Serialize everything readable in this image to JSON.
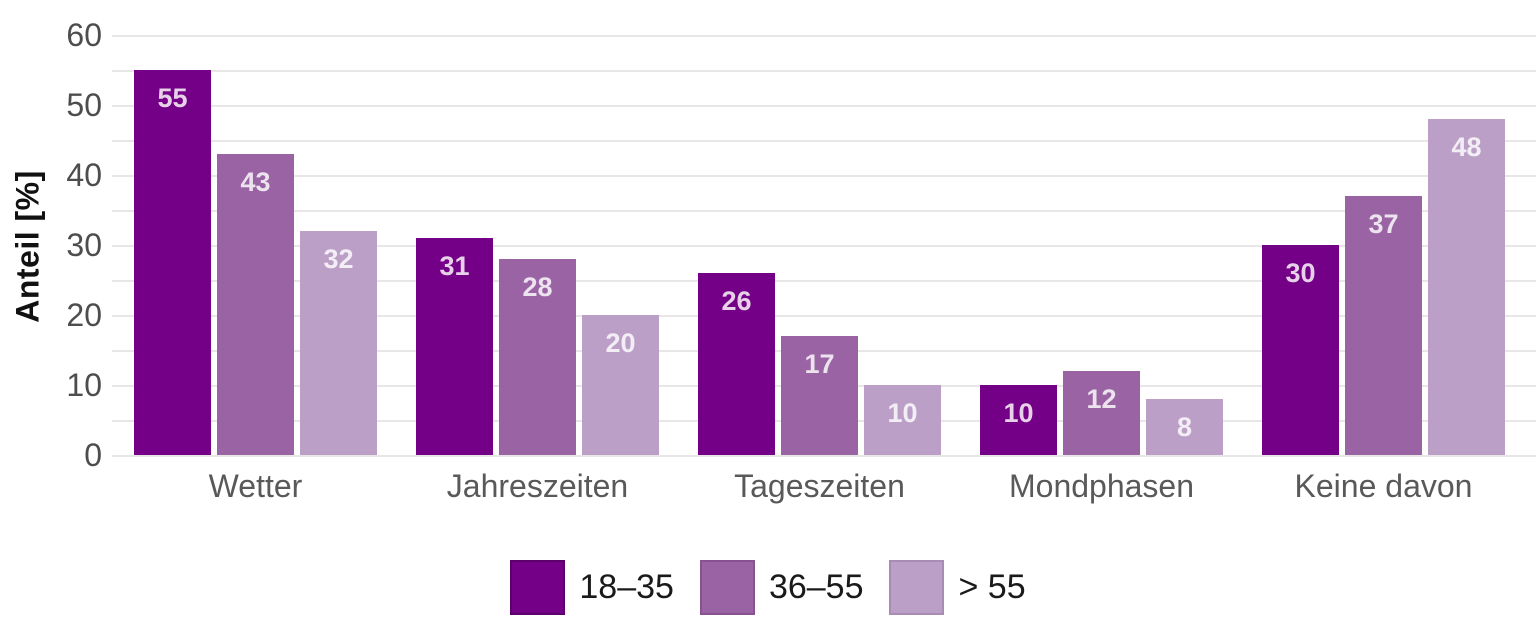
{
  "chart_data": {
    "type": "bar",
    "title": "",
    "xlabel": "",
    "ylabel": "Anteil [%]",
    "categories": [
      "Wetter",
      "Jahreszeiten",
      "Tageszeiten",
      "Mondphasen",
      "Keine davon"
    ],
    "series": [
      {
        "name": "18–35",
        "color": "#730087",
        "border_color": "#5c006b",
        "values": [
          55,
          31,
          26,
          10,
          30
        ]
      },
      {
        "name": "36–55",
        "color": "#9963A4",
        "border_color": "#87528f",
        "values": [
          43,
          28,
          17,
          12,
          37
        ]
      },
      {
        "name": "> 55",
        "color": "#BB9FC7",
        "border_color": "#a98cb6",
        "values": [
          32,
          20,
          10,
          8,
          48
        ]
      }
    ],
    "ylim": [
      0,
      60
    ],
    "ytick_major_step": 10,
    "ytick_minor_step": 5,
    "grid": "horizontal-every-5",
    "gridline_color": "#e8e6e6",
    "bar_value_labels_shown": true,
    "bar_value_label_color": "rgba(255,255,255,0.82)",
    "legend_position": "bottom"
  }
}
